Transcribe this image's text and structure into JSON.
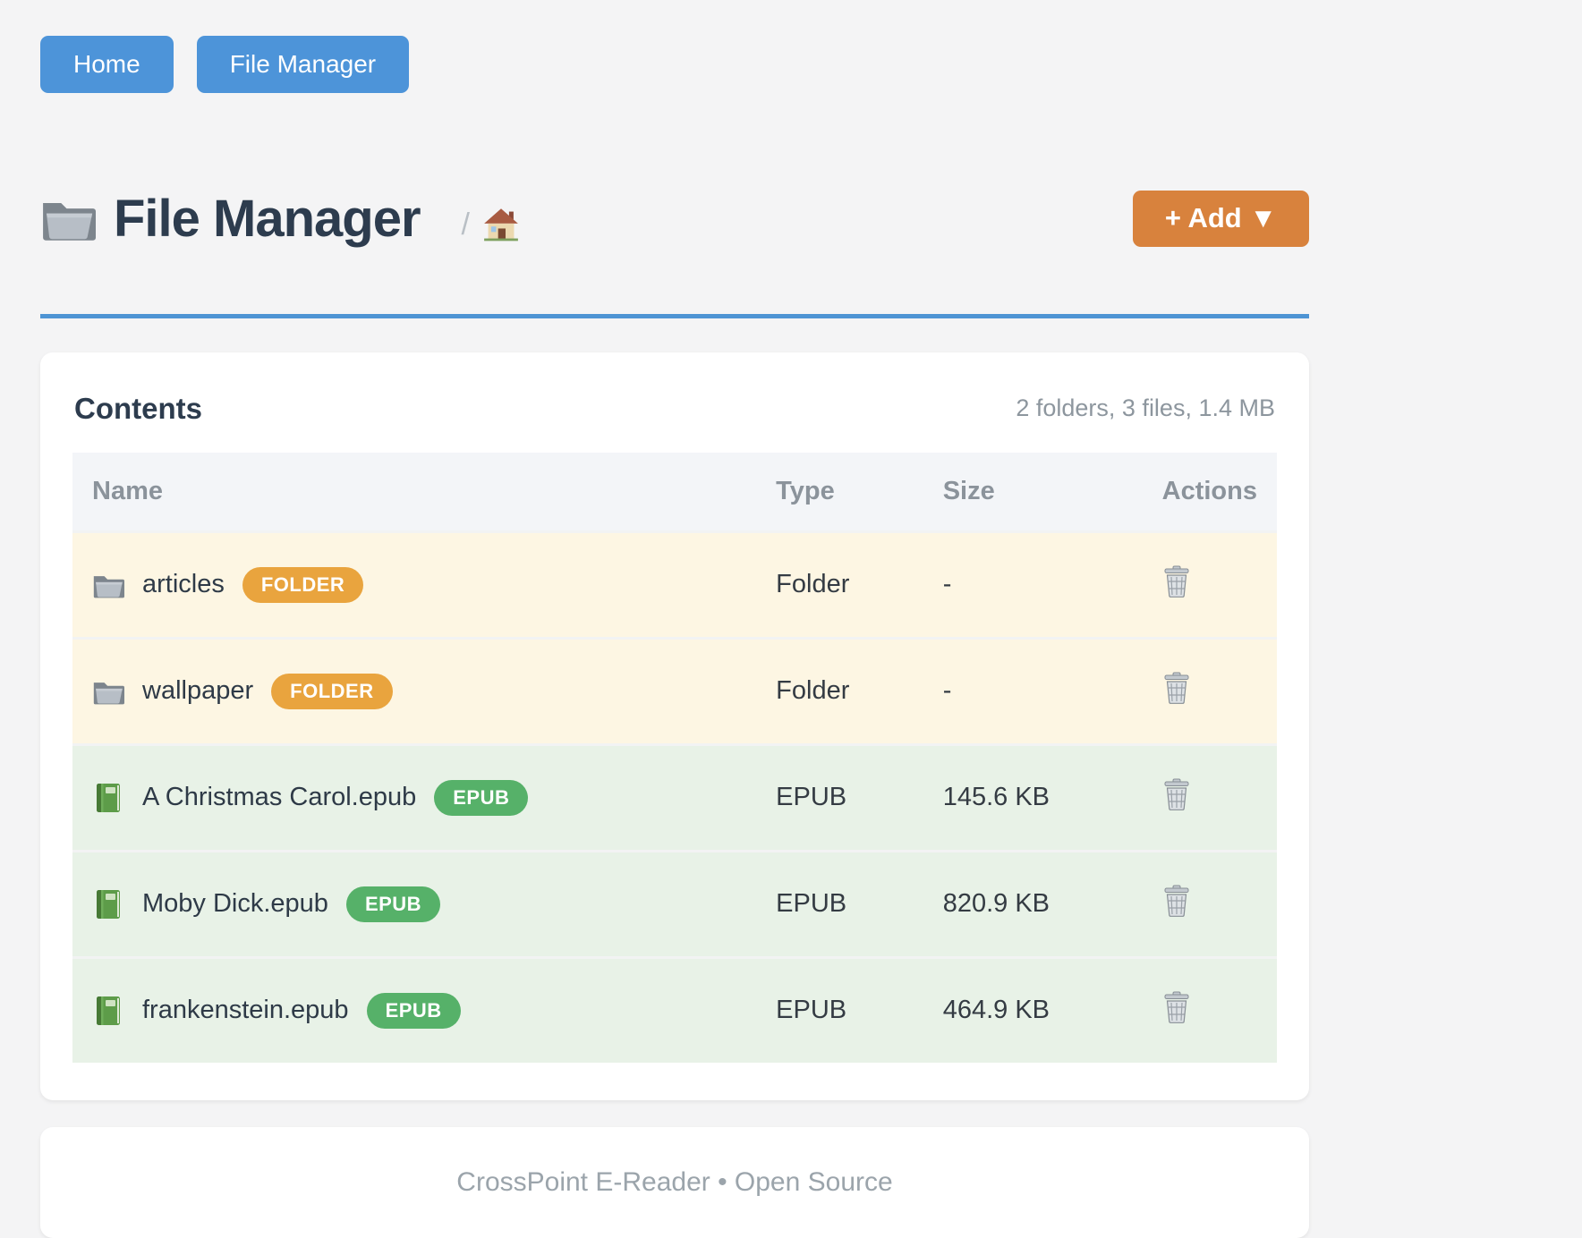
{
  "nav": {
    "items": [
      {
        "label": "Home"
      },
      {
        "label": "File Manager"
      }
    ]
  },
  "header": {
    "title": "File Manager",
    "breadcrumb_separator": "/",
    "add_button_label": "+ Add ▼"
  },
  "icons": {
    "title": "folder-icon",
    "breadcrumb_home": "home-icon",
    "folder_row": "folder-icon",
    "epub_row": "book-icon",
    "actions": "trash-icon"
  },
  "contents": {
    "heading": "Contents",
    "summary": "2 folders, 3 files, 1.4 MB",
    "columns": [
      "Name",
      "Type",
      "Size",
      "Actions"
    ],
    "rows": [
      {
        "name": "articles",
        "badge": "FOLDER",
        "kind": "folder",
        "icon": "folder-icon",
        "type": "Folder",
        "size": "-"
      },
      {
        "name": "wallpaper",
        "badge": "FOLDER",
        "kind": "folder",
        "icon": "folder-icon",
        "type": "Folder",
        "size": "-"
      },
      {
        "name": "A Christmas Carol.epub",
        "badge": "EPUB",
        "kind": "epub",
        "icon": "book-icon",
        "type": "EPUB",
        "size": "145.6 KB"
      },
      {
        "name": "Moby Dick.epub",
        "badge": "EPUB",
        "kind": "epub",
        "icon": "book-icon",
        "type": "EPUB",
        "size": "820.9 KB"
      },
      {
        "name": "frankenstein.epub",
        "badge": "EPUB",
        "kind": "epub",
        "icon": "book-icon",
        "type": "EPUB",
        "size": "464.9 KB"
      }
    ]
  },
  "footer": {
    "text": "CrossPoint E-Reader • Open Source"
  },
  "colors": {
    "page_bg": "#f4f4f5",
    "primary_blue": "#4d94d9",
    "rule_blue": "#4e94d4",
    "accent_orange": "#d8823d",
    "folder_badge": "#e9a43e",
    "epub_badge": "#56b169",
    "folder_row_bg": "#fdf6e3",
    "epub_row_bg": "#e8f2e7",
    "heading_text": "#2d3c4e",
    "muted_text": "#8d969e"
  }
}
